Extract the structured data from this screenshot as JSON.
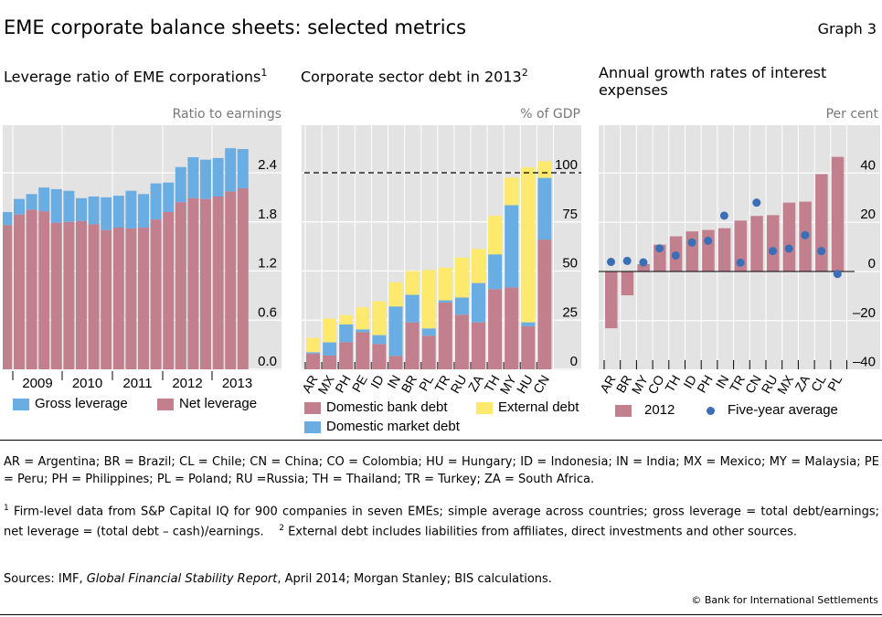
{
  "header": {
    "title": "EME corporate balance sheets: selected metrics",
    "graph_number": "Graph 3"
  },
  "colors": {
    "blue": "#6aade2",
    "pink": "#c27f8e",
    "yellow": "#fde96e",
    "dot": "#3a6fb7",
    "plot_bg": "#e3e3e3"
  },
  "chart_data": [
    {
      "type": "bar",
      "stacked": "overlay",
      "title": "Leverage ratio of EME corporations",
      "title_sup": "1",
      "unit": "Ratio to earnings",
      "ylim": [
        0,
        3.0
      ],
      "yticks": [
        "0.0",
        "0.6",
        "1.2",
        "1.8",
        "2.4"
      ],
      "ytick_values": [
        0,
        0.6,
        1.2,
        1.8,
        2.4
      ],
      "x_tick_labels": [
        "2009",
        "2010",
        "2011",
        "2012",
        "2013"
      ],
      "grid": true,
      "series": [
        {
          "name": "Gross leverage",
          "color": "#6aade2",
          "values": [
            1.92,
            2.08,
            2.14,
            2.22,
            2.2,
            2.18,
            2.09,
            2.11,
            2.1,
            2.12,
            2.18,
            2.14,
            2.27,
            2.28,
            2.47,
            2.59,
            2.56,
            2.58,
            2.7,
            2.69
          ]
        },
        {
          "name": "Net leverage",
          "color": "#c27f8e",
          "values": [
            1.76,
            1.89,
            1.95,
            1.93,
            1.79,
            1.8,
            1.81,
            1.77,
            1.7,
            1.73,
            1.72,
            1.73,
            1.83,
            1.92,
            2.04,
            2.09,
            2.08,
            2.11,
            2.17,
            2.21
          ]
        }
      ],
      "legend": "bottom"
    },
    {
      "type": "bar",
      "stacked": true,
      "title": "Corporate sector debt in 2013",
      "title_sup": "2",
      "unit": "% of GDP",
      "ylim": [
        0,
        124
      ],
      "yticks": [
        "0",
        "25",
        "50",
        "75",
        "100"
      ],
      "ytick_values": [
        0,
        25,
        50,
        75,
        100
      ],
      "reference_line": 100,
      "categories": [
        "AR",
        "MX",
        "PH",
        "PE",
        "ID",
        "IN",
        "BR",
        "PL",
        "TR",
        "RU",
        "ZA",
        "TH",
        "MY",
        "HU",
        "CN"
      ],
      "series": [
        {
          "name": "Domestic bank debt",
          "color": "#c27f8e",
          "values": [
            8.0,
            7.0,
            13.8,
            18.9,
            12.9,
            6.8,
            23.9,
            17.1,
            34.0,
            27.8,
            23.9,
            40.8,
            41.6,
            21.9,
            66.0
          ]
        },
        {
          "name": "Domestic market debt",
          "color": "#6aade2",
          "values": [
            0.7,
            6.7,
            9.0,
            1.4,
            4.5,
            25.2,
            14.0,
            3.7,
            1.1,
            8.7,
            20.0,
            17.7,
            41.9,
            2.0,
            31.4
          ]
        },
        {
          "name": "External debt",
          "color": "#fde96e",
          "values": [
            7.3,
            12.1,
            4.8,
            11.2,
            17.2,
            12.3,
            12.1,
            29.7,
            16.6,
            20.3,
            17.3,
            19.6,
            14.0,
            78.9,
            8.5
          ]
        }
      ],
      "legend": "bottom"
    },
    {
      "type": "bar",
      "title": "Annual growth rates of interest expenses",
      "unit": "Per cent",
      "ylim": [
        -40,
        59
      ],
      "yticks": [
        "–40",
        "–20",
        "0",
        "20",
        "40"
      ],
      "ytick_values": [
        -40,
        -20,
        0,
        20,
        40
      ],
      "categories": [
        "AR",
        "BR",
        "MY",
        "CO",
        "TH",
        "ID",
        "PH",
        "IN",
        "TR",
        "CN",
        "RU",
        "MX",
        "ZA",
        "CL",
        "PL"
      ],
      "series": [
        {
          "name": "2012",
          "type": "bar",
          "color": "#c27f8e",
          "values": [
            -23.1,
            -9.7,
            3.0,
            10.9,
            14.3,
            16.3,
            16.9,
            17.6,
            20.7,
            22.6,
            22.9,
            28.0,
            28.4,
            39.6,
            46.6
          ]
        },
        {
          "name": "Five-year average",
          "type": "scatter",
          "color": "#3a6fb7",
          "values": [
            3.9,
            4.3,
            3.7,
            9.4,
            6.5,
            11.8,
            12.5,
            22.7,
            3.6,
            28.0,
            8.3,
            9.3,
            14.8,
            8.3,
            -1.0
          ]
        }
      ],
      "legend": "bottom"
    }
  ],
  "notes": {
    "abbreviations": "AR = Argentina; BR = Brazil; CL = Chile; CN = China; CO = Colombia; HU = Hungary; ID = Indonesia; IN = India; MX = Mexico; MY = Malaysia; PE = Peru; PH = Philippines; PL = Poland; RU =Russia; TH = Thailand; TR = Turkey; ZA = South Africa.",
    "fn1_mark": "1",
    "fn1": " Firm-level data from S&P Capital IQ for 900 companies in seven EMEs; simple average across countries; gross leverage = total debt/earnings; net leverage = (total debt – cash)/earnings.",
    "fn2_mark": "2",
    "fn2": " External debt includes liabilities from affiliates, direct investments and other sources.",
    "sources_prefix": "Sources: IMF, ",
    "sources_italic": "Global Financial Stability Report",
    "sources_suffix": ", April 2014; Morgan Stanley; BIS calculations.",
    "copyright": "© Bank for International Settlements"
  }
}
